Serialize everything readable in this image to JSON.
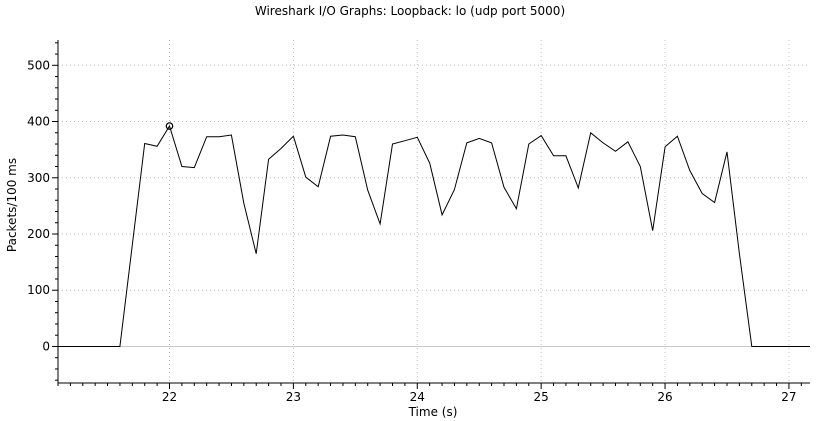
{
  "chart_data": {
    "type": "line",
    "title": "Wireshark I/O Graphs: Loopback: lo (udp port 5000)",
    "xlabel": "Time (s)",
    "ylabel": "Packets/100 ms",
    "xlim": [
      21.1,
      27.17
    ],
    "ylim": [
      -65,
      545
    ],
    "xticks": [
      22,
      23,
      24,
      25,
      26,
      27
    ],
    "yticks": [
      0,
      100,
      200,
      300,
      400,
      500
    ],
    "grid": true,
    "line_color": "#000000",
    "marker": {
      "x": 22.0,
      "y": 392
    },
    "series": [
      {
        "x": [
          21.1,
          21.6,
          21.8,
          21.9,
          22.0,
          22.1,
          22.2,
          22.3,
          22.4,
          22.5,
          22.6,
          22.7,
          22.8,
          22.9,
          23.0,
          23.1,
          23.2,
          23.3,
          23.4,
          23.5,
          23.6,
          23.7,
          23.8,
          23.9,
          24.0,
          24.1,
          24.2,
          24.3,
          24.4,
          24.5,
          24.6,
          24.7,
          24.8,
          24.9,
          25.0,
          25.1,
          25.2,
          25.3,
          25.4,
          25.5,
          25.6,
          25.7,
          25.8,
          25.9,
          26.0,
          26.1,
          26.2,
          26.3,
          26.4,
          26.5,
          26.6,
          26.7,
          27.17
        ],
        "y": [
          0,
          0,
          361,
          356,
          392,
          320,
          318,
          373,
          373,
          376,
          255,
          165,
          333,
          352,
          374,
          301,
          284,
          374,
          376,
          373,
          278,
          218,
          360,
          366,
          372,
          326,
          234,
          279,
          362,
          370,
          362,
          283,
          245,
          360,
          375,
          339,
          339,
          282,
          380,
          362,
          347,
          364,
          320,
          206,
          355,
          374,
          313,
          272,
          256,
          346,
          165,
          0,
          0
        ]
      }
    ]
  }
}
